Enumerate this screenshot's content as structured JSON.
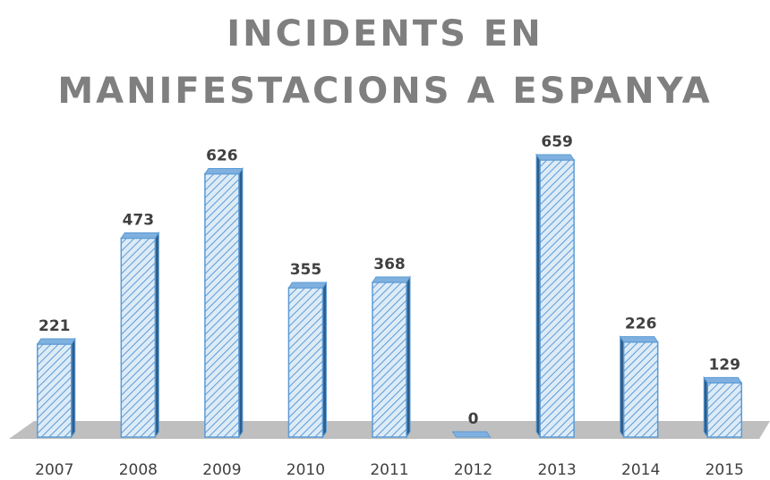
{
  "chart_data": {
    "type": "bar3d",
    "title": "INCIDENTS EN MANIFESTACIONS A ESPANYA",
    "categories": [
      "2007",
      "2008",
      "2009",
      "2010",
      "2011",
      "2012",
      "2013",
      "2014",
      "2015"
    ],
    "values": [
      221,
      473,
      626,
      355,
      368,
      0,
      659,
      226,
      129
    ],
    "color": "#5b9bd5"
  }
}
